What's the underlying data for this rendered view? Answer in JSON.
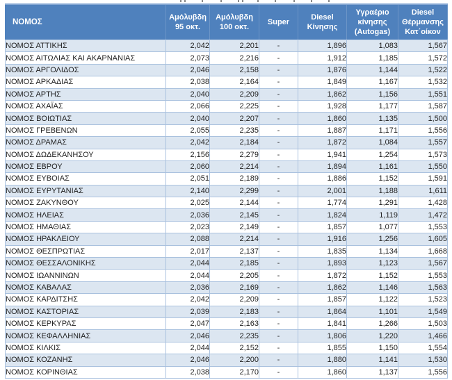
{
  "colors": {
    "header_bg": "#4f81bd",
    "header_text": "#ffffff",
    "band": "#dce6f1",
    "border": "#a9c1de",
    "text": "#1f1f1f"
  },
  "top_remnant_marks_x": [
    259,
    265,
    290,
    317,
    342,
    348,
    370,
    395,
    422,
    447,
    472
  ],
  "table": {
    "columns": [
      {
        "label": "ΝΟΜΟΣ"
      },
      {
        "label": "Αμόλυβδη\n95 οκτ."
      },
      {
        "label": "Αμόλυβδη\n100 οκτ."
      },
      {
        "label": "Super"
      },
      {
        "label": "Diesel\nΚίνησης"
      },
      {
        "label": "Υγραέριο\nκίνησης\n(Autogas)"
      },
      {
        "label": "Diesel\nΘέρμανσης\nΚατ΄οίκον"
      }
    ],
    "rows": [
      [
        "ΝΟΜΟΣ ΑΤΤΙΚΗΣ",
        "2,042",
        "2,201",
        "-",
        "1,896",
        "1,083",
        "1,567"
      ],
      [
        "ΝΟΜΟΣ ΑΙΤΩΛΙΑΣ ΚΑΙ ΑΚΑΡΝΑΝΙΑΣ",
        "2,073",
        "2,216",
        "-",
        "1,912",
        "1,185",
        "1,572"
      ],
      [
        "ΝΟΜΟΣ ΑΡΓΟΛΙΔΟΣ",
        "2,046",
        "2,158",
        "-",
        "1,876",
        "1,144",
        "1,522"
      ],
      [
        "ΝΟΜΟΣ ΑΡΚΑΔΙΑΣ",
        "2,038",
        "2,164",
        "-",
        "1,849",
        "1,167",
        "1,532"
      ],
      [
        "ΝΟΜΟΣ ΑΡΤΗΣ",
        "2,040",
        "2,209",
        "-",
        "1,862",
        "1,156",
        "1,551"
      ],
      [
        "ΝΟΜΟΣ ΑΧΑΪΑΣ",
        "2,066",
        "2,225",
        "-",
        "1,928",
        "1,177",
        "1,587"
      ],
      [
        "ΝΟΜΟΣ ΒΟΙΩΤΙΑΣ",
        "2,040",
        "2,207",
        "-",
        "1,860",
        "1,135",
        "1,500"
      ],
      [
        "ΝΟΜΟΣ ΓΡΕΒΕΝΩΝ",
        "2,055",
        "2,235",
        "-",
        "1,887",
        "1,171",
        "1,556"
      ],
      [
        "ΝΟΜΟΣ ΔΡΑΜΑΣ",
        "2,042",
        "2,184",
        "-",
        "1,872",
        "1,084",
        "1,557"
      ],
      [
        "ΝΟΜΟΣ ΔΩΔΕΚΑΝΗΣΟΥ",
        "2,156",
        "2,279",
        "-",
        "1,941",
        "1,254",
        "1,573"
      ],
      [
        "ΝΟΜΟΣ ΕΒΡΟΥ",
        "2,060",
        "2,214",
        "-",
        "1,894",
        "1,161",
        "1,550"
      ],
      [
        "ΝΟΜΟΣ ΕΥΒΟΙΑΣ",
        "2,051",
        "2,189",
        "-",
        "1,886",
        "1,152",
        "1,591"
      ],
      [
        "ΝΟΜΟΣ ΕΥΡΥΤΑΝΙΑΣ",
        "2,140",
        "2,299",
        "-",
        "2,001",
        "1,188",
        "1,611"
      ],
      [
        "ΝΟΜΟΣ ΖΑΚΥΝΘΟΥ",
        "2,025",
        "2,144",
        "-",
        "1,774",
        "1,291",
        "1,428"
      ],
      [
        "ΝΟΜΟΣ ΗΛΕΙΑΣ",
        "2,036",
        "2,145",
        "-",
        "1,824",
        "1,119",
        "1,472"
      ],
      [
        "ΝΟΜΟΣ ΗΜΑΘΙΑΣ",
        "2,023",
        "2,149",
        "-",
        "1,857",
        "1,077",
        "1,553"
      ],
      [
        "ΝΟΜΟΣ ΗΡΑΚΛΕΙΟΥ",
        "2,088",
        "2,214",
        "-",
        "1,916",
        "1,256",
        "1,605"
      ],
      [
        "ΝΟΜΟΣ ΘΕΣΠΡΩΤΙΑΣ",
        "2,017",
        "2,137",
        "-",
        "1,835",
        "1,134",
        "1,668"
      ],
      [
        "ΝΟΜΟΣ ΘΕΣΣΑΛΟΝΙΚΗΣ",
        "2,044",
        "2,185",
        "-",
        "1,893",
        "1,123",
        "1,567"
      ],
      [
        "ΝΟΜΟΣ ΙΩΑΝΝΙΝΩΝ",
        "2,044",
        "2,205",
        "-",
        "1,872",
        "1,152",
        "1,553"
      ],
      [
        "ΝΟΜΟΣ ΚΑΒΑΛΑΣ",
        "2,036",
        "2,169",
        "-",
        "1,862",
        "1,146",
        "1,563"
      ],
      [
        "ΝΟΜΟΣ ΚΑΡΔΙΤΣΗΣ",
        "2,042",
        "2,209",
        "-",
        "1,857",
        "1,122",
        "1,523"
      ],
      [
        "ΝΟΜΟΣ ΚΑΣΤΟΡΙΑΣ",
        "2,039",
        "2,183",
        "-",
        "1,864",
        "1,101",
        "1,549"
      ],
      [
        "ΝΟΜΟΣ ΚΕΡΚΥΡΑΣ",
        "2,047",
        "2,163",
        "-",
        "1,841",
        "1,266",
        "1,503"
      ],
      [
        "ΝΟΜΟΣ ΚΕΦΑΛΛΗΝΙΑΣ",
        "2,046",
        "2,235",
        "-",
        "1,806",
        "1,220",
        "1,466"
      ],
      [
        "ΝΟΜΟΣ ΚΙΛΚΙΣ",
        "2,044",
        "2,152",
        "-",
        "1,855",
        "1,150",
        "1,554"
      ],
      [
        "ΝΟΜΟΣ ΚΟΖΑΝΗΣ",
        "2,046",
        "2,200",
        "-",
        "1,880",
        "1,141",
        "1,530"
      ],
      [
        "ΝΟΜΟΣ ΚΟΡΙΝΘΙΑΣ",
        "2,038",
        "2,170",
        "-",
        "1,860",
        "1,137",
        "1,556"
      ]
    ]
  }
}
